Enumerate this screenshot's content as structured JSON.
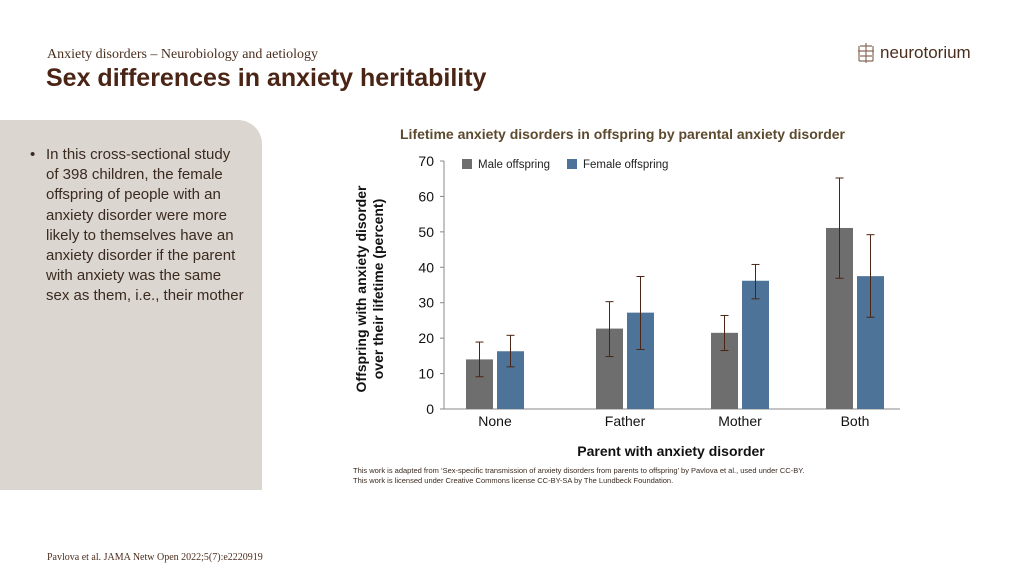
{
  "header": {
    "subtitle": "Anxiety disorders – Neurobiology and aetiology",
    "title": "Sex differences in anxiety heritability"
  },
  "logo": {
    "text": "neurotorium",
    "icon": "brain-icon"
  },
  "bullet": "In this cross-sectional study of 398 children, the female offspring of people with an anxiety disorder were more likely to themselves have an anxiety disorder if the parent with anxiety was the same sex as them, i.e., their mother",
  "credit": [
    "This work is adapted from ‘Sex-specific transmission of anxiety disorders from parents to offspring’ by Pavlova et al., used under CC-BY.",
    "This work is licensed under Creative Commons license CC-BY-SA by The Lundbeck Foundation."
  ],
  "reference": "Pavlova et al. JAMA Netw Open 2022;5(7):e2220919",
  "chart_data": {
    "type": "bar",
    "title": "Lifetime anxiety disorders in offspring by parental anxiety disorder",
    "xlabel": "Parent with anxiety disorder",
    "ylabel": "Offspring with anxiety disorder over their lifetime (percent)",
    "ylim": [
      0,
      70
    ],
    "yticks": [
      0,
      10,
      20,
      30,
      40,
      50,
      60,
      70
    ],
    "categories": [
      "None",
      "Father",
      "Mother",
      "Both"
    ],
    "legend_position": "top-left",
    "grid": false,
    "series": [
      {
        "name": "Male offspring",
        "color": "#6e6e6e",
        "values": [
          14.0,
          22.7,
          21.5,
          51.1
        ],
        "err_low": [
          9.1,
          14.8,
          16.5,
          36.9
        ],
        "err_high": [
          18.9,
          30.3,
          26.4,
          65.2
        ]
      },
      {
        "name": "Female offspring",
        "color": "#4e7398",
        "values": [
          16.3,
          27.2,
          36.2,
          37.5
        ],
        "err_low": [
          11.9,
          16.8,
          31.1,
          25.9
        ],
        "err_high": [
          20.8,
          37.4,
          40.8,
          49.2
        ]
      }
    ],
    "error_bar_color": "#4a2414"
  }
}
